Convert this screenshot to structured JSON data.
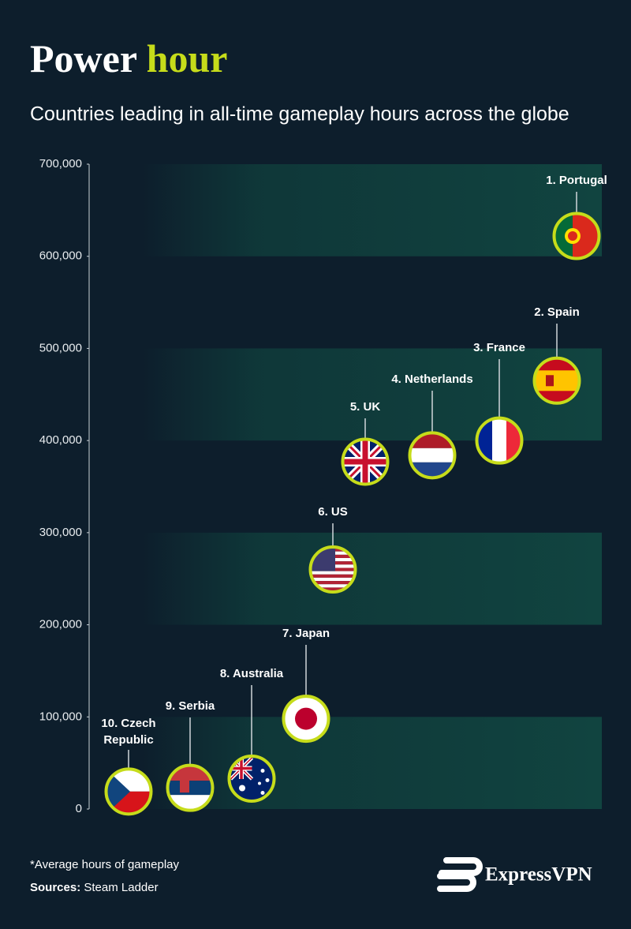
{
  "chart_data": {
    "type": "flag-scatter",
    "title": [
      "Power",
      "hour"
    ],
    "subtitle": "Countries leading in all-time gameplay hours across the globe",
    "categories": [
      "1. Portugal",
      "2. Spain",
      "3. France",
      "4. Netherlands",
      "5. UK",
      "6. US",
      "7. Japan",
      "8. Australia",
      "9. Serbia",
      "10. Czech Republic"
    ],
    "values": [
      622000,
      465000,
      400000,
      384000,
      377000,
      260000,
      98000,
      33000,
      23000,
      19000
    ],
    "ylim": [
      0,
      700000
    ],
    "yticks": [
      0,
      {
        "value": 100000,
        "label": "100,000"
      },
      {
        "value": 200000,
        "label": "200,000"
      },
      {
        "value": 300000,
        "label": "300,000"
      },
      {
        "value": 400000,
        "label": "400,000"
      },
      {
        "value": 500000,
        "label": "500,000"
      },
      {
        "value": 600000,
        "label": "600,000"
      },
      {
        "value": 700000,
        "label": "700,000"
      }
    ],
    "marker_color": "#c6dc1a",
    "highlight_color": "#c6dc1a",
    "footnote": "*Average hours of gameplay",
    "sources_label": "Sources:",
    "sources": "Steam Ladder",
    "brand": "ExpressVPN"
  }
}
